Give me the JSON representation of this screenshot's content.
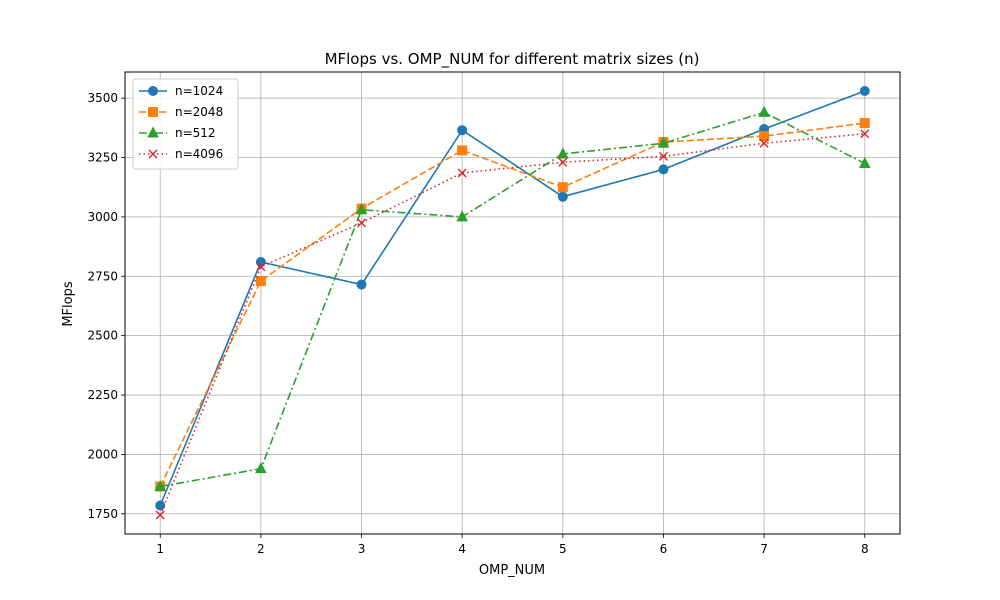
{
  "chart_data": {
    "type": "line",
    "title": "MFlops vs. OMP_NUM for different matrix sizes (n)",
    "xlabel": "OMP_NUM",
    "ylabel": "MFlops",
    "x": [
      1,
      2,
      3,
      4,
      5,
      6,
      7,
      8
    ],
    "x_ticks": [
      "1",
      "2",
      "3",
      "4",
      "5",
      "6",
      "7",
      "8"
    ],
    "y_ticks": [
      "1750",
      "2000",
      "2250",
      "2500",
      "2750",
      "3000",
      "3250",
      "3500"
    ],
    "xlim": [
      0.65,
      8.35
    ],
    "ylim": [
      1665,
      3610
    ],
    "grid": true,
    "legend_position": "top-left",
    "series": [
      {
        "name": "n=1024",
        "color": "#1f77b4",
        "marker": "circle",
        "linestyle": "solid",
        "values": [
          1785,
          2810,
          2715,
          3365,
          3085,
          3200,
          3370,
          3530
        ]
      },
      {
        "name": "n=2048",
        "color": "#ff7f0e",
        "marker": "square",
        "linestyle": "dashed",
        "values": [
          1865,
          2730,
          3035,
          3280,
          3125,
          3315,
          3340,
          3395
        ]
      },
      {
        "name": "n=512",
        "color": "#2ca02c",
        "marker": "triangle",
        "linestyle": "dashdot",
        "values": [
          1865,
          1940,
          3030,
          3000,
          3265,
          3310,
          3440,
          3225
        ]
      },
      {
        "name": "n=4096",
        "color": "#d62728",
        "marker": "x",
        "linestyle": "dotted",
        "values": [
          1745,
          2790,
          2975,
          3185,
          3230,
          3255,
          3310,
          3350
        ]
      }
    ]
  }
}
